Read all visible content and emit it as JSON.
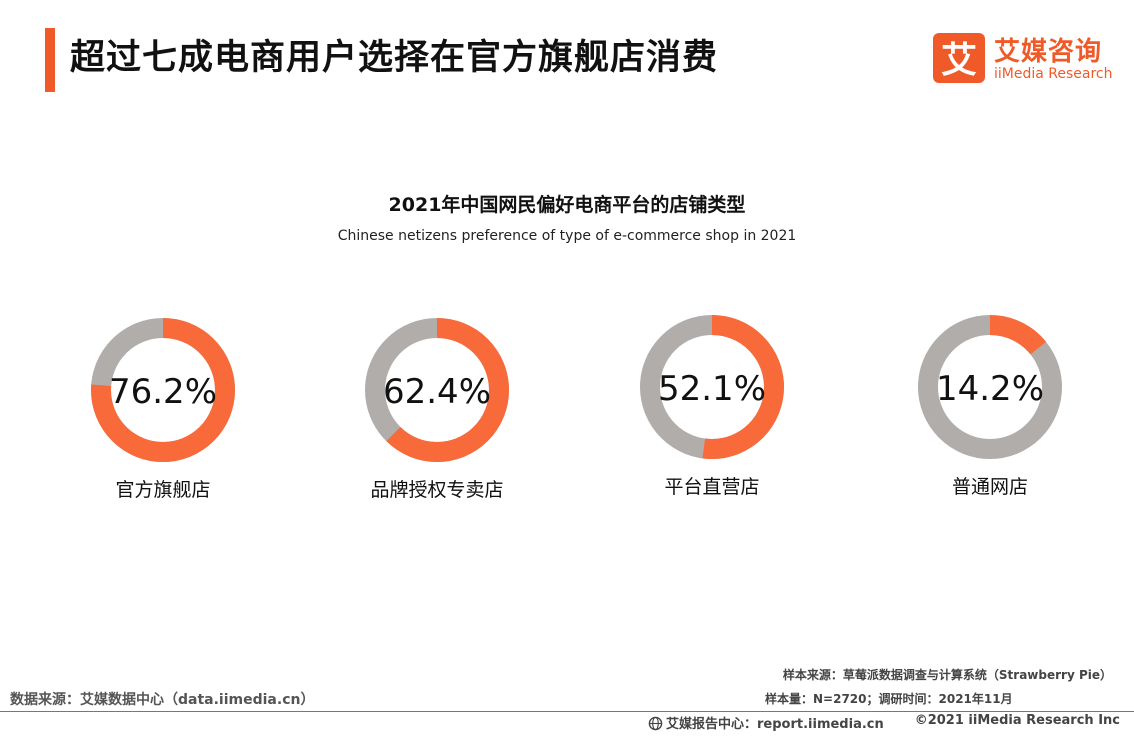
{
  "header": {
    "title": "超过七成电商用户选择在官方旗舰店消费",
    "accent_color": "#f05a28"
  },
  "logo": {
    "mark_char": "艾",
    "name_cn": "艾媒咨询",
    "name_en": "iiMedia Research"
  },
  "chart_data": {
    "type": "pie",
    "title": "2021年中国网民偏好电商平台的店铺类型",
    "subtitle": "Chinese netizens preference of type of e-commerce shop in 2021",
    "colors": {
      "value": "#f96a3a",
      "remainder": "#b0adab"
    },
    "unit": "%",
    "items": [
      {
        "label": "官方旗舰店",
        "value": 76.2,
        "display": "76.2%"
      },
      {
        "label": "品牌授权专卖店",
        "value": 62.4,
        "display": "62.4%"
      },
      {
        "label": "平台直营店",
        "value": 52.1,
        "display": "52.1%"
      },
      {
        "label": "普通网店",
        "value": 14.2,
        "display": "14.2%"
      }
    ]
  },
  "footer": {
    "source": "数据来源：艾媒数据中心（data.iimedia.cn）",
    "sample_source": "样本来源：草莓派数据调查与计算系统（Strawberry Pie）",
    "sample_size": "样本量：N=2720；调研时间：2021年11月",
    "report_center": "艾媒报告中心：report.iimedia.cn",
    "copyright": "©2021  iiMedia Research Inc"
  }
}
